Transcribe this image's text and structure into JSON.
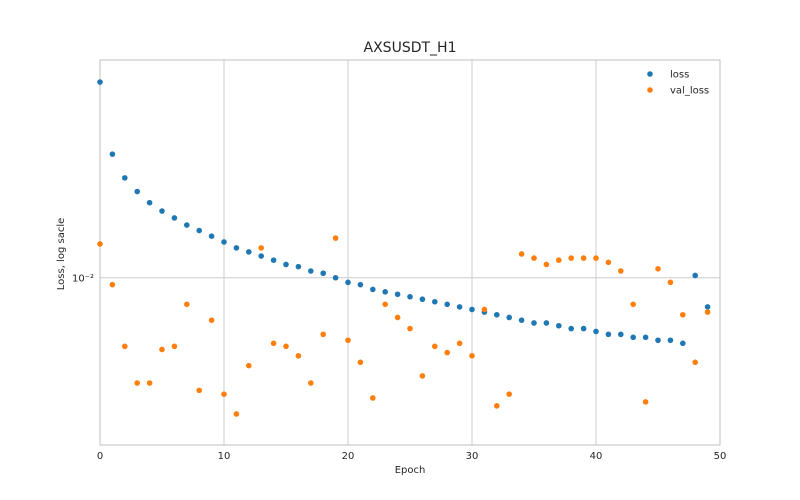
{
  "chart_data": {
    "type": "scatter",
    "title": "AXSUSDT_H1",
    "xlabel": "Epoch",
    "ylabel": "Loss, log sacle",
    "xlim": [
      0,
      50
    ],
    "ylim": [
      0.0048,
      0.026
    ],
    "yscale": "log",
    "xticks": [
      0,
      10,
      20,
      30,
      40,
      50
    ],
    "yticks": [
      {
        "value": 0.01,
        "label": "10⁻²"
      }
    ],
    "grid": true,
    "legend_position": "top-right",
    "series": [
      {
        "name": "loss",
        "color": "#1f77b4",
        "x": [
          0,
          1,
          2,
          3,
          4,
          5,
          6,
          7,
          8,
          9,
          10,
          11,
          12,
          13,
          14,
          15,
          16,
          17,
          18,
          19,
          20,
          21,
          22,
          23,
          24,
          25,
          26,
          27,
          28,
          29,
          30,
          31,
          32,
          33,
          34,
          35,
          36,
          37,
          38,
          39,
          40,
          41,
          42,
          43,
          44,
          45,
          46,
          47,
          48,
          49
        ],
        "y": [
          0.0236,
          0.0172,
          0.0155,
          0.0146,
          0.0139,
          0.0134,
          0.013,
          0.0126,
          0.0123,
          0.012,
          0.0117,
          0.0114,
          0.0112,
          0.011,
          0.0108,
          0.0106,
          0.0105,
          0.0103,
          0.0102,
          0.01,
          0.0098,
          0.0097,
          0.0095,
          0.0094,
          0.0093,
          0.0092,
          0.0091,
          0.009,
          0.0089,
          0.0088,
          0.0087,
          0.0086,
          0.0085,
          0.0084,
          0.0083,
          0.0082,
          0.0082,
          0.0081,
          0.008,
          0.008,
          0.0079,
          0.0078,
          0.0078,
          0.0077,
          0.0077,
          0.0076,
          0.0076,
          0.0075,
          0.0101,
          0.0088
        ]
      },
      {
        "name": "val_loss",
        "color": "#ff7f0e",
        "x": [
          0,
          1,
          2,
          3,
          4,
          5,
          6,
          7,
          8,
          9,
          10,
          11,
          12,
          13,
          14,
          15,
          16,
          17,
          18,
          19,
          20,
          21,
          22,
          23,
          24,
          25,
          26,
          27,
          28,
          29,
          30,
          31,
          32,
          33,
          34,
          35,
          36,
          37,
          38,
          39,
          40,
          41,
          42,
          43,
          44,
          45,
          46,
          47,
          48,
          49
        ],
        "y": [
          0.0116,
          0.0097,
          0.0074,
          0.0063,
          0.0063,
          0.0073,
          0.0074,
          0.0089,
          0.0061,
          0.0083,
          0.006,
          0.0055,
          0.0068,
          0.0114,
          0.0075,
          0.0074,
          0.0071,
          0.0063,
          0.0078,
          0.0119,
          0.0076,
          0.0069,
          0.0059,
          0.0089,
          0.0084,
          0.008,
          0.0065,
          0.0074,
          0.0072,
          0.0075,
          0.0071,
          0.0087,
          0.0057,
          0.006,
          0.0111,
          0.0109,
          0.0106,
          0.0108,
          0.0109,
          0.0109,
          0.0109,
          0.0107,
          0.0103,
          0.0089,
          0.0058,
          0.0104,
          0.0098,
          0.0085,
          0.0069,
          0.0086
        ]
      }
    ]
  }
}
